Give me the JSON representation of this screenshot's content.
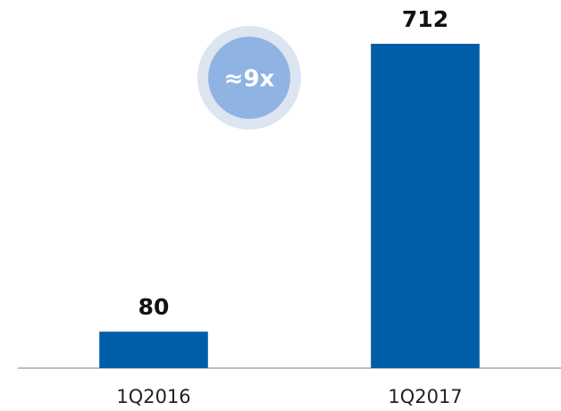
{
  "chart_data": {
    "type": "bar",
    "categories": [
      "1Q2016",
      "1Q2017"
    ],
    "values": [
      80,
      712
    ],
    "color": "#005ea8",
    "annotation": "≈9x"
  }
}
